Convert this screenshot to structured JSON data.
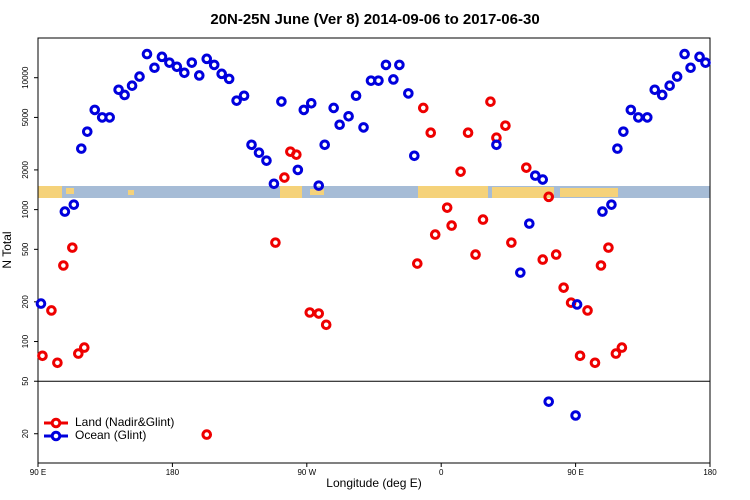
{
  "chart_data": {
    "type": "scatter",
    "title": "20N-25N June (Ver 8)   2014-09-06 to 2017-06-30",
    "x_label": "Longitude (deg E)",
    "y_label": "N Total",
    "log_y": true,
    "legend": "bottom-left",
    "reference_line": 50,
    "xlim": [
      90,
      540
    ],
    "xticks": [
      {
        "value": 90,
        "label": "90 E"
      },
      {
        "value": 180,
        "label": "180"
      },
      {
        "value": 270,
        "label": "90 W"
      },
      {
        "value": 360,
        "label": "0"
      },
      {
        "value": 450,
        "label": "90 E"
      },
      {
        "value": 540,
        "label": "180"
      }
    ],
    "ylim": [
      12,
      20000
    ],
    "yticks": [
      20,
      50,
      100,
      200,
      500,
      1000,
      2000,
      5000,
      10000
    ],
    "series": [
      {
        "name": "Land (Nadir&Glint)",
        "color": "#ee0000",
        "x": [
          93,
          99,
          103,
          107,
          113,
          117,
          121,
          203,
          249,
          255,
          259,
          263,
          272,
          278,
          283,
          344,
          348,
          353,
          356,
          364,
          367,
          373,
          378,
          383,
          388,
          393,
          397,
          403,
          407,
          417,
          428,
          432,
          437,
          442,
          447,
          453,
          458,
          463,
          467,
          472,
          477,
          481
        ],
        "values": [
          78,
          172,
          69,
          377,
          515,
          81,
          90,
          19.7,
          562,
          1750,
          2750,
          2610,
          166,
          163,
          134,
          390,
          5900,
          3830,
          647,
          1035,
          757,
          1940,
          3830,
          456,
          840,
          6580,
          3510,
          4330,
          562,
          2080,
          418,
          1250,
          456,
          256,
          197,
          78,
          172,
          69,
          377,
          515,
          81,
          90
        ]
      },
      {
        "name": "Ocean (Glint)",
        "color": "#0000dd",
        "x": [
          92,
          108,
          114,
          119,
          123,
          128,
          133,
          138,
          144,
          148,
          153,
          158,
          163,
          168,
          173,
          178,
          183,
          188,
          193,
          198,
          203,
          208,
          213,
          218,
          223,
          228,
          233,
          238,
          243,
          248,
          253,
          264,
          268,
          273,
          278,
          282,
          288,
          292,
          298,
          303,
          308,
          313,
          318,
          323,
          328,
          332,
          338,
          342,
          397,
          413,
          419,
          423,
          428,
          432,
          450,
          451,
          468,
          474,
          478,
          482,
          487,
          492,
          498,
          503,
          508,
          513,
          518,
          523,
          527,
          533,
          537
        ],
        "values": [
          194,
          966,
          1090,
          2900,
          3900,
          5700,
          5000,
          5000,
          8100,
          7400,
          8700,
          10200,
          15100,
          11900,
          14400,
          13000,
          12100,
          10900,
          13000,
          10400,
          13900,
          12500,
          10700,
          9800,
          6700,
          7300,
          3100,
          2700,
          2350,
          1570,
          6600,
          2000,
          5700,
          6400,
          1520,
          3100,
          5900,
          4400,
          5100,
          7300,
          4200,
          9500,
          9500,
          12500,
          9700,
          12500,
          7600,
          2560,
          3100,
          333,
          783,
          1810,
          1690,
          35,
          27.5,
          191,
          966,
          1090,
          2900,
          3900,
          5700,
          5000,
          5000,
          8100,
          7400,
          8700,
          10200,
          15100,
          11900,
          14400,
          13000
        ]
      }
    ]
  }
}
